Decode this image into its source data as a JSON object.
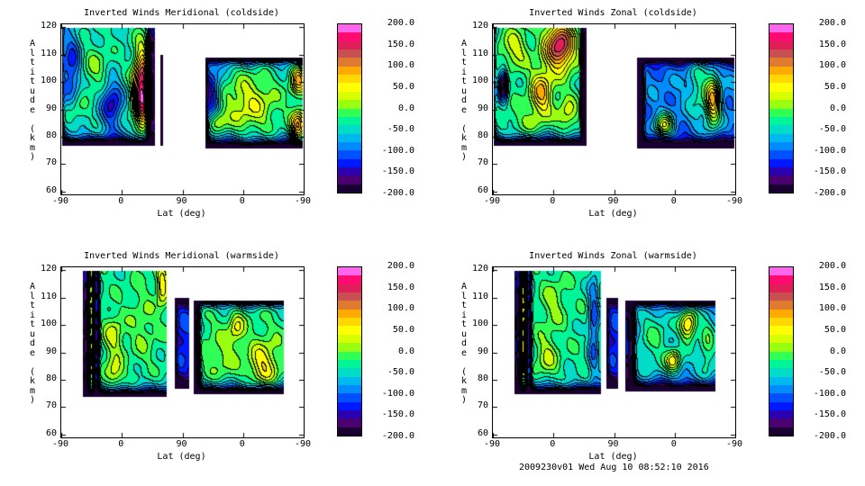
{
  "chart_data": [
    {
      "type": "heatmap",
      "title": "Inverted Winds Meridional (coldside)",
      "xlabel": "Lat (deg)",
      "ylabel": "Altitude (km)",
      "x_tick_labels": [
        "-90",
        "0",
        "90",
        "0",
        "-90"
      ],
      "y_ticks": [
        60,
        70,
        80,
        90,
        100,
        110,
        120
      ],
      "ylim": [
        59,
        121
      ],
      "colorbar": {
        "min": -200,
        "max": 200,
        "bands": 20,
        "tick_labels": [
          "200.0",
          "150.0",
          "100.0",
          "50.0",
          "0.0",
          "-50.0",
          "-100.0",
          "-150.0",
          "-200.0"
        ]
      },
      "blocks": [
        {
          "u": [
            0,
            139
          ],
          "alt": [
            77,
            120
          ],
          "base": -40
        },
        {
          "u": [
            146,
            150
          ],
          "alt": [
            77,
            110
          ],
          "base": -200
        },
        {
          "u": [
            214,
            360
          ],
          "alt": [
            76,
            109
          ],
          "base": -40
        }
      ],
      "features": [
        {
          "u": 15,
          "alt": 105,
          "value": -90,
          "su": 10,
          "sa": 10
        },
        {
          "u": 50,
          "alt": 105,
          "value": 40,
          "su": 15,
          "sa": 6
        },
        {
          "u": 20,
          "alt": 90,
          "value": 35,
          "su": 10,
          "sa": 5
        },
        {
          "u": 75,
          "alt": 92,
          "value": -110,
          "su": 11,
          "sa": 6
        },
        {
          "u": 120,
          "alt": 97,
          "value": 230,
          "su": 9,
          "sa": 10
        },
        {
          "u": 135,
          "alt": 97,
          "value": -200,
          "su": 5,
          "sa": 20
        },
        {
          "u": 222,
          "alt": 95,
          "value": -110,
          "su": 10,
          "sa": 8
        },
        {
          "u": 280,
          "alt": 92,
          "value": 75,
          "su": 30,
          "sa": 8
        },
        {
          "u": 230,
          "alt": 86,
          "value": 80,
          "su": 10,
          "sa": 3
        },
        {
          "u": 352,
          "alt": 84,
          "value": 140,
          "su": 8,
          "sa": 4
        },
        {
          "u": 352,
          "alt": 101,
          "value": 120,
          "su": 8,
          "sa": 4
        }
      ]
    },
    {
      "type": "heatmap",
      "title": "Inverted Winds Zonal (coldside)",
      "xlabel": "Lat (deg)",
      "ylabel": "Altitude (km)",
      "x_tick_labels": [
        "-90",
        "0",
        "90",
        "0",
        "-90"
      ],
      "y_ticks": [
        60,
        70,
        80,
        90,
        100,
        110,
        120
      ],
      "ylim": [
        59,
        121
      ],
      "colorbar": {
        "min": -200,
        "max": 200,
        "bands": 20,
        "tick_labels": [
          "200.0",
          "150.0",
          "100.0",
          "50.0",
          "0.0",
          "-50.0",
          "-100.0",
          "-150.0",
          "-200.0"
        ]
      },
      "blocks": [
        {
          "u": [
            0,
            139
          ],
          "alt": [
            77,
            120
          ],
          "base": -30
        },
        {
          "u": [
            214,
            360
          ],
          "alt": [
            76,
            109
          ],
          "base": -90
        }
      ],
      "features": [
        {
          "u": 32,
          "alt": 112,
          "value": 60,
          "su": 15,
          "sa": 5
        },
        {
          "u": 99,
          "alt": 113,
          "value": 190,
          "su": 15,
          "sa": 6
        },
        {
          "u": 72,
          "alt": 96,
          "value": 110,
          "su": 12,
          "sa": 6
        },
        {
          "u": 15,
          "alt": 99,
          "value": -160,
          "su": 5,
          "sa": 4
        },
        {
          "u": 50,
          "alt": 85,
          "value": 30,
          "su": 20,
          "sa": 4
        },
        {
          "u": 136,
          "alt": 98,
          "value": -220,
          "su": 3,
          "sa": 25
        },
        {
          "u": 110,
          "alt": 88,
          "value": 60,
          "su": 10,
          "sa": 5
        },
        {
          "u": 218,
          "alt": 92,
          "value": -150,
          "su": 4,
          "sa": 20
        },
        {
          "u": 254,
          "alt": 84,
          "value": 130,
          "su": 10,
          "sa": 3
        },
        {
          "u": 327,
          "alt": 93,
          "value": 160,
          "su": 8,
          "sa": 7
        },
        {
          "u": 305,
          "alt": 98,
          "value": 60,
          "su": 12,
          "sa": 10
        }
      ]
    },
    {
      "type": "heatmap",
      "title": "Inverted Winds Meridional (warmside)",
      "xlabel": "Lat (deg)",
      "ylabel": "Altitude (km)",
      "x_tick_labels": [
        "-90",
        "0",
        "90",
        "0",
        "-90"
      ],
      "y_ticks": [
        60,
        70,
        80,
        90,
        100,
        110,
        120
      ],
      "ylim": [
        59,
        121
      ],
      "colorbar": {
        "min": -200,
        "max": 200,
        "bands": 20,
        "tick_labels": [
          "200.0",
          "150.0",
          "100.0",
          "50.0",
          "0.0",
          "-50.0",
          "-100.0",
          "-150.0",
          "-200.0"
        ]
      },
      "blocks": [
        {
          "u": [
            32,
            156
          ],
          "alt": [
            74,
            120
          ],
          "base": -30
        },
        {
          "u": [
            168,
            190
          ],
          "alt": [
            77,
            110
          ],
          "base": -120
        },
        {
          "u": [
            196,
            330
          ],
          "alt": [
            75,
            109
          ],
          "base": -20
        }
      ],
      "features": [
        {
          "u": 44,
          "alt": 97,
          "value": 70,
          "su": 3,
          "sa": 30
        },
        {
          "u": 37,
          "alt": 97,
          "value": -150,
          "su": 3,
          "sa": 30
        },
        {
          "u": 52,
          "alt": 97,
          "value": -130,
          "su": 3,
          "sa": 30
        },
        {
          "u": 78,
          "alt": 96,
          "value": 60,
          "su": 10,
          "sa": 5
        },
        {
          "u": 78,
          "alt": 82,
          "value": 70,
          "su": 10,
          "sa": 4
        },
        {
          "u": 150,
          "alt": 114,
          "value": 90,
          "su": 6,
          "sa": 5
        },
        {
          "u": 120,
          "alt": 100,
          "value": 30,
          "su": 15,
          "sa": 10
        },
        {
          "u": 200,
          "alt": 90,
          "value": -150,
          "su": 4,
          "sa": 20
        },
        {
          "u": 300,
          "alt": 85,
          "value": 80,
          "su": 15,
          "sa": 6
        },
        {
          "u": 260,
          "alt": 99,
          "value": 60,
          "su": 8,
          "sa": 4
        },
        {
          "u": 240,
          "alt": 88,
          "value": 30,
          "su": 15,
          "sa": 6
        }
      ]
    },
    {
      "type": "heatmap",
      "title": "Inverted Winds Zonal (warmside)",
      "xlabel": "Lat (deg)",
      "ylabel": "Altitude (km)",
      "x_tick_labels": [
        "-90",
        "0",
        "90",
        "0",
        "-90"
      ],
      "y_ticks": [
        60,
        70,
        80,
        90,
        100,
        110,
        120
      ],
      "ylim": [
        59,
        121
      ],
      "colorbar": {
        "min": -200,
        "max": 200,
        "bands": 20,
        "tick_labels": [
          "200.0",
          "150.0",
          "100.0",
          "50.0",
          "0.0",
          "-50.0",
          "-100.0",
          "-150.0",
          "-200.0"
        ]
      },
      "blocks": [
        {
          "u": [
            32,
            160
          ],
          "alt": [
            75,
            120
          ],
          "base": -30
        },
        {
          "u": [
            168,
            185
          ],
          "alt": [
            77,
            110
          ],
          "base": -120
        },
        {
          "u": [
            196,
            330
          ],
          "alt": [
            76,
            109
          ],
          "base": -60
        }
      ],
      "features": [
        {
          "u": 45,
          "alt": 97,
          "value": 90,
          "su": 3,
          "sa": 30
        },
        {
          "u": 38,
          "alt": 97,
          "value": -150,
          "su": 3,
          "sa": 30
        },
        {
          "u": 53,
          "alt": 97,
          "value": -120,
          "su": 3,
          "sa": 30
        },
        {
          "u": 90,
          "alt": 108,
          "value": 40,
          "su": 12,
          "sa": 6
        },
        {
          "u": 80,
          "alt": 88,
          "value": 50,
          "su": 12,
          "sa": 6
        },
        {
          "u": 150,
          "alt": 100,
          "value": -80,
          "su": 6,
          "sa": 15
        },
        {
          "u": 205,
          "alt": 92,
          "value": -130,
          "su": 4,
          "sa": 20
        },
        {
          "u": 290,
          "alt": 100,
          "value": 130,
          "su": 9,
          "sa": 4
        },
        {
          "u": 268,
          "alt": 87,
          "value": 110,
          "su": 8,
          "sa": 3
        },
        {
          "u": 240,
          "alt": 95,
          "value": 40,
          "su": 15,
          "sa": 8
        },
        {
          "u": 318,
          "alt": 92,
          "value": 50,
          "su": 8,
          "sa": 8
        }
      ]
    }
  ],
  "colors": [
    "#1a0030",
    "#4a0070",
    "#2a00b0",
    "#0018ff",
    "#0050ff",
    "#008cff",
    "#00b8f0",
    "#00dcc8",
    "#00f598",
    "#30ff58",
    "#98ff10",
    "#d8ff00",
    "#ffff00",
    "#ffd800",
    "#ffaa00",
    "#e07a30",
    "#c85050",
    "#e01e5a",
    "#ff0a70",
    "#ff66ee"
  ],
  "footer": "2009230v01 Wed Aug 10 08:52:10 2016"
}
